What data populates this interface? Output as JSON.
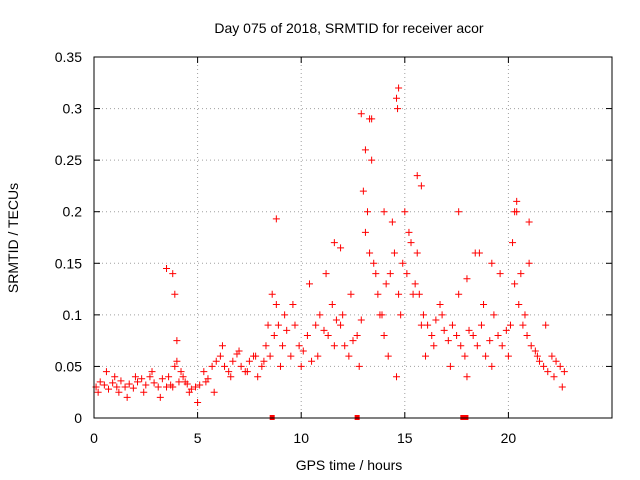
{
  "chart_data": {
    "type": "scatter",
    "title": "Day 075 of 2018, SRMTID for receiver acor",
    "xlabel": "GPS time / hours",
    "ylabel": "SRMTID / TECUs",
    "xlim": [
      0,
      25
    ],
    "ylim": [
      0,
      0.35
    ],
    "xticks": [
      0,
      5,
      10,
      15,
      20
    ],
    "yticks": [
      0,
      0.05,
      0.1,
      0.15,
      0.2,
      0.25,
      0.3,
      0.35
    ],
    "xtick_labels": [
      "0",
      "5",
      "10",
      "15",
      "20"
    ],
    "ytick_labels": [
      "0",
      "0.05",
      "0.1",
      "0.15",
      "0.2",
      "0.25",
      "0.3",
      "0.35"
    ],
    "grid": true,
    "marker": "+",
    "color": "#ff0000",
    "gap_markers_x": [
      8.6,
      12.7,
      17.8,
      17.95
    ],
    "series": [
      {
        "name": "SRMTID",
        "x": [
          0.1,
          0.3,
          0.5,
          0.7,
          0.9,
          1.1,
          1.3,
          1.5,
          1.7,
          1.9,
          2.1,
          2.3,
          2.5,
          2.7,
          2.9,
          3.1,
          3.3,
          3.5,
          3.7,
          3.9,
          4.1,
          4.3,
          4.5,
          4.7,
          4.9,
          5.1,
          5.3,
          5.5,
          5.7,
          5.9,
          6.1,
          6.3,
          6.5,
          6.7,
          6.9,
          7.1,
          7.3,
          7.5,
          7.7,
          7.9,
          8.1,
          8.3,
          8.5,
          8.7,
          8.9,
          9.1,
          9.3,
          9.5,
          9.7,
          9.9,
          10.1,
          10.3,
          10.5,
          10.7,
          10.9,
          11.1,
          11.3,
          11.5,
          11.7,
          11.9,
          12.1,
          12.3,
          12.5,
          12.7,
          12.9,
          13.1,
          13.3,
          13.5,
          13.7,
          13.9,
          14.1,
          14.3,
          14.5,
          14.7,
          14.9,
          15.1,
          15.3,
          15.5,
          15.7,
          15.9,
          16.1,
          16.3,
          16.5,
          16.7,
          16.9,
          17.1,
          17.3,
          17.5,
          17.7,
          17.9,
          18.1,
          18.3,
          18.5,
          18.7,
          18.9,
          19.1,
          19.3,
          19.5,
          19.7,
          19.9,
          20.1,
          20.3,
          20.5,
          20.7,
          20.9,
          21.1,
          21.3,
          21.5,
          21.7,
          21.9,
          22.1,
          22.3,
          22.5,
          22.7,
          0.2,
          0.6,
          1.0,
          1.2,
          1.6,
          2.0,
          2.4,
          2.8,
          3.2,
          3.6,
          3.8,
          4.0,
          4.2,
          4.4,
          4.6,
          5.0,
          5.4,
          5.8,
          6.2,
          6.6,
          7.0,
          7.4,
          7.8,
          8.2,
          8.4,
          8.6,
          8.8,
          9.0,
          9.2,
          9.6,
          10.0,
          10.4,
          10.8,
          11.2,
          11.6,
          12.0,
          12.4,
          12.8,
          13.0,
          13.2,
          13.4,
          13.6,
          13.8,
          14.0,
          14.2,
          14.4,
          14.6,
          14.8,
          15.0,
          15.2,
          15.4,
          15.6,
          15.8,
          16.0,
          16.4,
          16.8,
          17.2,
          17.6,
          18.0,
          18.4,
          18.8,
          19.2,
          19.6,
          20.0,
          20.2,
          20.4,
          20.6,
          20.8,
          21.0,
          21.4,
          21.8,
          22.2,
          22.6,
          3.5,
          3.8,
          3.9,
          4.0,
          8.8,
          11.6,
          11.9,
          12.9,
          13.1,
          13.3,
          13.4,
          14.0,
          14.6,
          14.65,
          14.7,
          15.6,
          15.8,
          17.6,
          18.0,
          18.6,
          19.2,
          20.3,
          20.4,
          21.0
        ],
        "y": [
          0.03,
          0.035,
          0.032,
          0.028,
          0.034,
          0.03,
          0.036,
          0.03,
          0.033,
          0.029,
          0.035,
          0.038,
          0.032,
          0.04,
          0.034,
          0.03,
          0.038,
          0.03,
          0.032,
          0.05,
          0.035,
          0.04,
          0.033,
          0.028,
          0.03,
          0.032,
          0.045,
          0.038,
          0.05,
          0.055,
          0.06,
          0.05,
          0.045,
          0.055,
          0.062,
          0.05,
          0.045,
          0.055,
          0.06,
          0.04,
          0.05,
          0.07,
          0.06,
          0.08,
          0.09,
          0.07,
          0.085,
          0.06,
          0.09,
          0.07,
          0.065,
          0.08,
          0.055,
          0.09,
          0.1,
          0.085,
          0.08,
          0.11,
          0.095,
          0.09,
          0.07,
          0.06,
          0.075,
          0.08,
          0.095,
          0.18,
          0.16,
          0.15,
          0.12,
          0.1,
          0.13,
          0.14,
          0.16,
          0.12,
          0.15,
          0.14,
          0.17,
          0.13,
          0.12,
          0.1,
          0.09,
          0.08,
          0.095,
          0.11,
          0.085,
          0.075,
          0.09,
          0.08,
          0.07,
          0.06,
          0.085,
          0.08,
          0.07,
          0.09,
          0.06,
          0.075,
          0.1,
          0.08,
          0.07,
          0.085,
          0.09,
          0.13,
          0.11,
          0.09,
          0.08,
          0.07,
          0.065,
          0.055,
          0.05,
          0.045,
          0.06,
          0.055,
          0.05,
          0.045,
          0.025,
          0.045,
          0.04,
          0.025,
          0.02,
          0.04,
          0.025,
          0.045,
          0.02,
          0.04,
          0.03,
          0.055,
          0.045,
          0.035,
          0.025,
          0.015,
          0.035,
          0.025,
          0.07,
          0.04,
          0.065,
          0.045,
          0.06,
          0.055,
          0.09,
          0.12,
          0.11,
          0.05,
          0.1,
          0.11,
          0.05,
          0.13,
          0.06,
          0.14,
          0.07,
          0.1,
          0.12,
          0.05,
          0.22,
          0.2,
          0.25,
          0.14,
          0.1,
          0.08,
          0.06,
          0.19,
          0.04,
          0.1,
          0.2,
          0.18,
          0.12,
          0.16,
          0.09,
          0.06,
          0.07,
          0.1,
          0.05,
          0.12,
          0.04,
          0.16,
          0.11,
          0.05,
          0.14,
          0.06,
          0.17,
          0.2,
          0.14,
          0.1,
          0.15,
          0.06,
          0.09,
          0.04,
          0.03,
          0.145,
          0.14,
          0.12,
          0.075,
          0.193,
          0.17,
          0.165,
          0.295,
          0.26,
          0.29,
          0.29,
          0.2,
          0.31,
          0.3,
          0.32,
          0.235,
          0.225,
          0.2,
          0.135,
          0.16,
          0.15,
          0.2,
          0.21,
          0.19
        ]
      }
    ]
  }
}
